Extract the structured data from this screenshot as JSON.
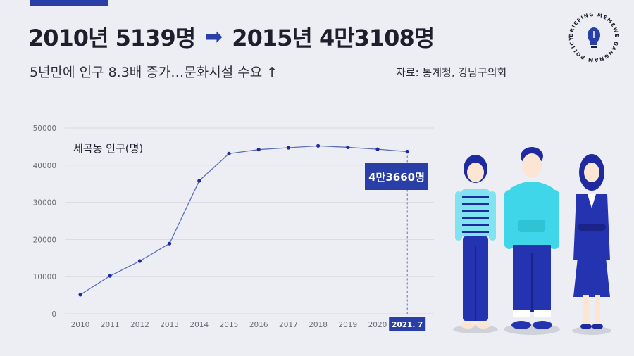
{
  "header": {
    "headline_left": "2010년 5139명",
    "headline_arrow": "➡",
    "headline_right": "2015년 4만3108명",
    "subtitle": "5년만에 인구 8.3배 증가…문화시설 수요 ↑",
    "source": "자료: 통계청, 강남구의회"
  },
  "badge": {
    "text": "BRIEFING MEMEWE GANGNAM POLICY",
    "icon": "lightbulb-icon"
  },
  "colors": {
    "accent": "#2a3ea8",
    "line": "#5b6fb8",
    "grid": "#d7d9e0",
    "background": "#eceef3"
  },
  "chart_data": {
    "type": "line",
    "title": "세곡동 인구(명)",
    "categories": [
      "2010",
      "2011",
      "2012",
      "2013",
      "2014",
      "2015",
      "2016",
      "2017",
      "2018",
      "2019",
      "2020",
      "2021. 7"
    ],
    "values": [
      5139,
      10200,
      14200,
      18900,
      35800,
      43108,
      44200,
      44700,
      45200,
      44800,
      44300,
      43660
    ],
    "ylim": [
      0,
      50000
    ],
    "yticks": [
      0,
      10000,
      20000,
      30000,
      40000,
      50000
    ],
    "grid": true,
    "highlight_label": "4만3660명",
    "highlight_index": 11
  }
}
